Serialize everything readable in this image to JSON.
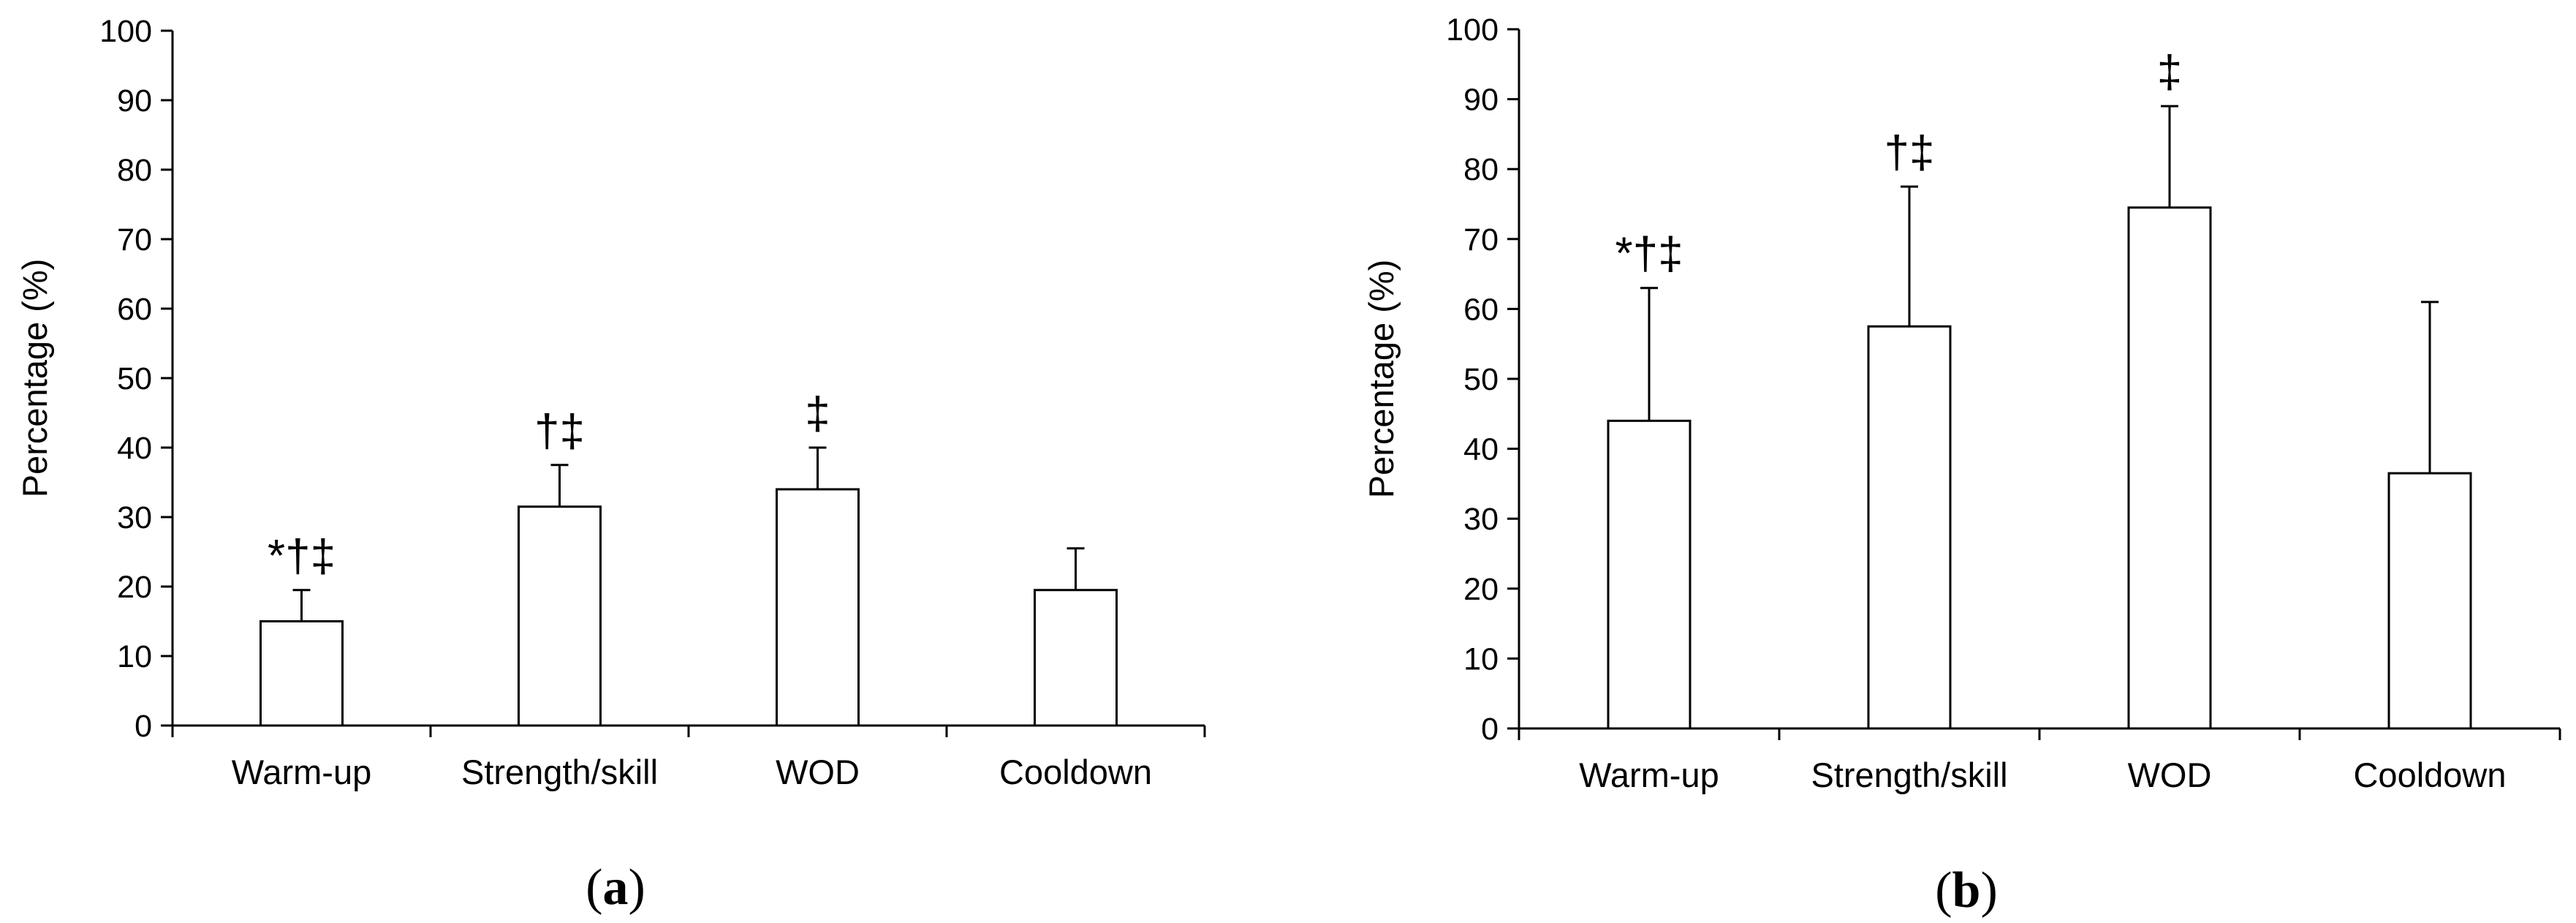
{
  "chart_data": [
    {
      "type": "bar",
      "panel_label": "(a)",
      "panel_label_letter": "a",
      "ylabel": "Percentage (%)",
      "xlabel": "",
      "ylim": [
        0,
        100
      ],
      "yticks": [
        0,
        10,
        20,
        30,
        40,
        50,
        60,
        70,
        80,
        90,
        100
      ],
      "categories": [
        "Warm-up",
        "Strength/skill",
        "WOD",
        "Cooldown"
      ],
      "values": [
        15,
        31.5,
        34,
        19.5
      ],
      "error_upper": [
        19.5,
        37.5,
        40,
        25.5
      ],
      "annotations": [
        "*†‡",
        "†‡",
        "‡",
        ""
      ],
      "bar_color": "#ffffff",
      "line_color": "#000000",
      "grid": false,
      "legend": "none"
    },
    {
      "type": "bar",
      "panel_label": "(b)",
      "panel_label_letter": "b",
      "ylabel": "Percentage (%)",
      "xlabel": "",
      "ylim": [
        0,
        100
      ],
      "yticks": [
        0,
        10,
        20,
        30,
        40,
        50,
        60,
        70,
        80,
        90,
        100
      ],
      "categories": [
        "Warm-up",
        "Strength/skill",
        "WOD",
        "Cooldown"
      ],
      "values": [
        44,
        57.5,
        74.5,
        36.5
      ],
      "error_upper": [
        63,
        77.5,
        89,
        61
      ],
      "annotations": [
        "*†‡",
        "†‡",
        "‡",
        ""
      ],
      "bar_color": "#ffffff",
      "line_color": "#000000",
      "grid": false,
      "legend": "none"
    }
  ]
}
